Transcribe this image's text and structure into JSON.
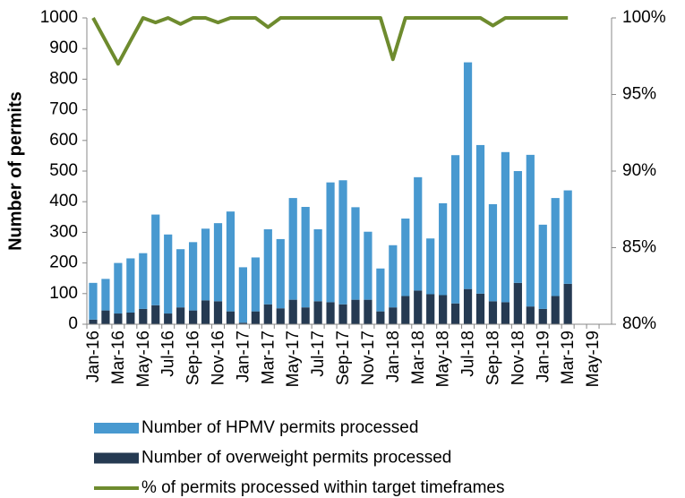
{
  "chart_data": {
    "type": "bar",
    "stacked": true,
    "y_label": "Number of permits",
    "categories": [
      "Jan-16",
      null,
      "Mar-16",
      null,
      "May-16",
      null,
      "Jul-16",
      null,
      "Sep-16",
      null,
      "Nov-16",
      null,
      "Jan-17",
      null,
      "Mar-17",
      null,
      "May-17",
      null,
      "Jul-17",
      null,
      "Sep-17",
      null,
      "Nov-17",
      null,
      "Jan-18",
      null,
      "Mar-18",
      null,
      "May-18",
      null,
      "Jul-18",
      null,
      "Sep-18",
      null,
      "Nov-18",
      null,
      "Jan-19",
      null,
      "Mar-19",
      null,
      "May-19",
      null
    ],
    "series": [
      {
        "name": "Number of HPMV permits processed",
        "type": "bar",
        "color": "#4899d0",
        "values": [
          120,
          103,
          165,
          177,
          182,
          296,
          258,
          190,
          223,
          234,
          255,
          326,
          181,
          176,
          245,
          226,
          332,
          328,
          235,
          391,
          405,
          302,
          222,
          140,
          203,
          253,
          370,
          182,
          300,
          484,
          740,
          485,
          317,
          490,
          365,
          495,
          275,
          320,
          305,
          null,
          null,
          null
        ]
      },
      {
        "name": "Number of overweight permits processed",
        "type": "bar",
        "color": "#253a52",
        "values": [
          15,
          45,
          35,
          38,
          50,
          62,
          35,
          55,
          45,
          78,
          75,
          42,
          5,
          42,
          65,
          52,
          80,
          55,
          75,
          72,
          65,
          80,
          80,
          42,
          55,
          92,
          110,
          98,
          95,
          68,
          115,
          100,
          75,
          72,
          135,
          58,
          50,
          92,
          132,
          null,
          null,
          null
        ]
      },
      {
        "name": "% of permits processed within target timeframes",
        "type": "line",
        "axis": "y2",
        "color": "#6e8b2e",
        "values": [
          100,
          98.5,
          97,
          98.5,
          100,
          99.7,
          100,
          99.6,
          100,
          100,
          99.7,
          100,
          100,
          100,
          99.4,
          100,
          100,
          100,
          100,
          100,
          100,
          100,
          100,
          100,
          97.3,
          100,
          100,
          100,
          100,
          100,
          100,
          100,
          99.5,
          100,
          100,
          100,
          100,
          100,
          100,
          null,
          null,
          null
        ]
      }
    ],
    "ylim": [
      0,
      1000
    ],
    "yticks": [
      0,
      100,
      200,
      300,
      400,
      500,
      600,
      700,
      800,
      900,
      1000
    ],
    "y2lim": [
      80,
      100
    ],
    "y2ticks": [
      {
        "value": 80,
        "label": "80%"
      },
      {
        "value": 85,
        "label": "85%"
      },
      {
        "value": 90,
        "label": "90%"
      },
      {
        "value": 95,
        "label": "95%"
      },
      {
        "value": 100,
        "label": "100%"
      }
    ],
    "grid": false,
    "legend": "bottom"
  }
}
